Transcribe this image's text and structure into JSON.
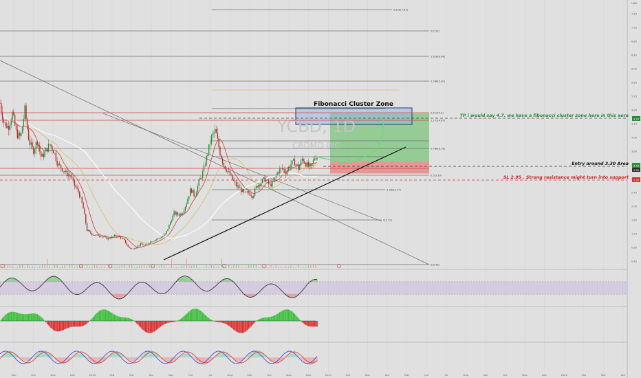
{
  "chart_data": {
    "type": "line",
    "symbol": "YCBD, 1D",
    "company": "CBDMD INC",
    "title": "Fibonacci Cluster Zone",
    "colors": {
      "background": "#e0e0e0",
      "candle_up": "#2f8f3a",
      "candle_down": "#b03030",
      "fib_line": "#6f6f6f",
      "red_level": "#d04040",
      "trend_line": "#111111",
      "green_zone": "#7cc47c",
      "red_zone": "#e88888",
      "cluster_box": "#9ab7df",
      "projection": "#5fe07a",
      "note_green": "#2a8a3a",
      "note_red": "#cc2222"
    },
    "price_axis": {
      "ylim": [
        0.4,
        7.6
      ],
      "ticks": [
        "7.60",
        "7.20",
        "6.80",
        "6.40",
        "6.00",
        "5.60",
        "5.20",
        "4.80",
        "4.40",
        "4.00",
        "3.60",
        "3.20",
        "2.80",
        "2.40",
        "2.00",
        "1.60",
        "1.20",
        "0.80",
        "0.40"
      ],
      "usd_label": "USD",
      "last_price": "3.43",
      "entry_tag": "3.30",
      "sl_tag": "2.95",
      "tp_tag": "4.70"
    },
    "x_axis": {
      "ticks": [
        "Sep",
        "Oct",
        "Nov",
        "Dec",
        "2020",
        "Feb",
        "Mar",
        "Apr",
        "May",
        "Jun",
        "Jul",
        "Aug",
        "Sep",
        "Oct",
        "Nov",
        "Dec",
        "2021",
        "Feb",
        "Mar",
        "Apr",
        "May",
        "Jun",
        "Jul",
        "Aug",
        "Sep",
        "Oct",
        "Nov",
        "Dec",
        "2022",
        "Feb",
        "Mar",
        "Apr"
      ]
    },
    "price_series": {
      "name": "YCBD",
      "x": [
        0,
        6,
        12,
        18,
        24,
        30,
        36,
        42,
        48,
        54,
        60,
        66,
        72,
        78,
        84,
        90,
        96,
        102,
        108,
        114,
        120,
        126,
        132,
        138,
        144,
        150,
        156,
        162,
        168,
        174,
        180,
        186,
        192,
        198,
        204,
        210,
        216,
        222,
        228,
        234,
        240,
        246,
        252,
        258,
        264,
        270,
        276,
        282,
        288,
        294,
        300,
        306,
        312,
        318,
        324,
        330,
        336,
        342,
        348,
        354,
        360,
        366,
        372,
        378,
        384,
        390,
        396,
        402,
        408,
        414,
        420,
        426,
        432,
        438,
        444,
        450,
        456,
        460
      ],
      "close": [
        5.0,
        4.4,
        4.3,
        4.7,
        4.1,
        4.0,
        4.8,
        3.9,
        3.6,
        3.9,
        3.4,
        3.6,
        3.8,
        3.6,
        3.2,
        3.1,
        2.95,
        2.9,
        2.6,
        2.4,
        2.0,
        1.3,
        1.2,
        1.15,
        1.15,
        1.1,
        1.05,
        1.1,
        1.15,
        1.1,
        1.0,
        0.8,
        0.75,
        0.82,
        0.9,
        0.85,
        0.95,
        1.0,
        1.05,
        1.1,
        1.2,
        1.5,
        1.8,
        1.75,
        1.8,
        2.1,
        2.5,
        2.3,
        2.7,
        3.0,
        3.5,
        4.0,
        4.2,
        3.6,
        3.2,
        3.0,
        2.8,
        2.6,
        2.5,
        2.35,
        2.4,
        2.3,
        2.6,
        2.7,
        2.8,
        2.6,
        2.7,
        3.0,
        3.1,
        3.0,
        3.2,
        3.3,
        3.1,
        3.4,
        3.2,
        3.1,
        3.45,
        3.43
      ]
    },
    "fib_levels": [
      {
        "label": "2.618(7.87)",
        "price": 7.87
      },
      {
        "label": "2(7.22)",
        "price": 7.22
      },
      {
        "label": "1.618(6.48)",
        "price": 6.48
      },
      {
        "label": "1.786(5.90)",
        "price": 5.9
      },
      {
        "label": "1.414(5.2)",
        "price": 5.2
      },
      {
        "label": "1.272(4.67)",
        "price": 4.67
      },
      {
        "label": "0.786(3.76)",
        "price": 3.76
      },
      {
        "label": "0.5(2.87)",
        "price": 2.87
      },
      {
        "label": "0.382(2.47)",
        "price": 2.47
      },
      {
        "label": "0(1.79)",
        "price": 1.79
      },
      {
        "label": "0(0.48)",
        "price": 0.48
      }
    ],
    "annotations": {
      "tp_note": "TP i would say 4.7. we have a fibonacci cluster zone here in this aera",
      "entry_note": "Entry around 3.30 Area",
      "sl_note": "SL 2.95 . Strong resistance might turn into support"
    },
    "trade": {
      "entry": 3.3,
      "stop": 2.95,
      "target": 4.7
    }
  }
}
